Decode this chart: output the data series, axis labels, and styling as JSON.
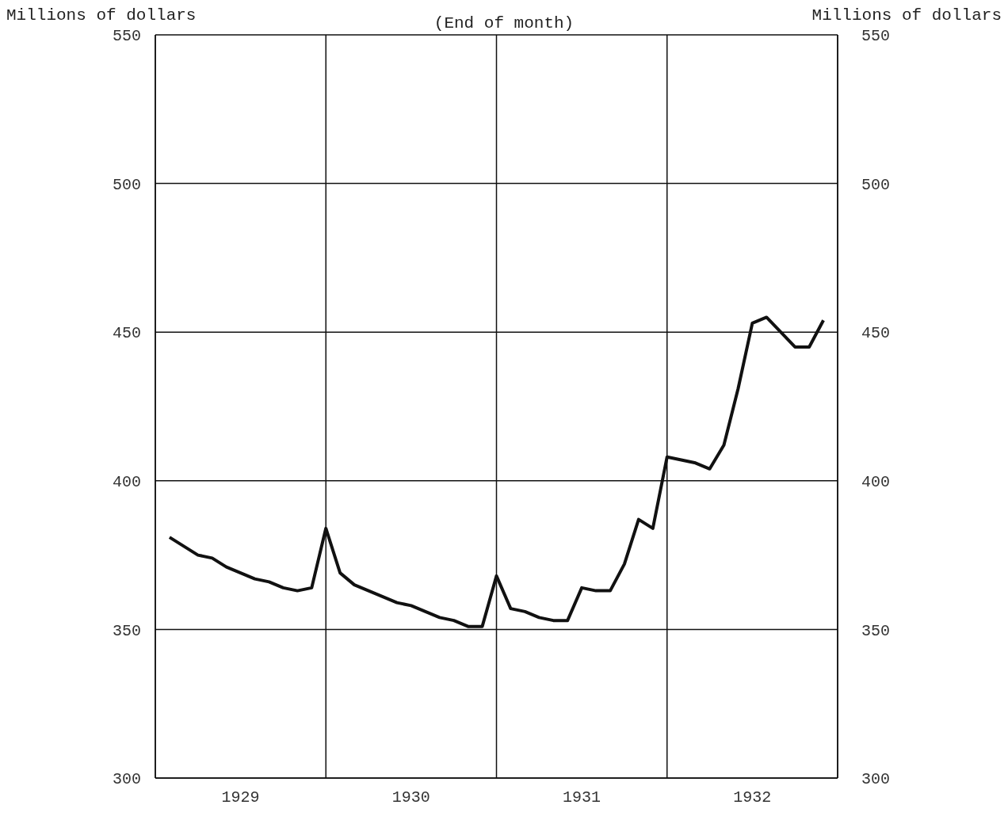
{
  "chart_data": {
    "type": "line",
    "subtitle": "(End of month)",
    "ylabel": "Millions of dollars",
    "y2label": "Millions of dollars",
    "x": [
      1929.0833,
      1929.1667,
      1929.25,
      1929.3333,
      1929.4167,
      1929.5,
      1929.5833,
      1929.6667,
      1929.75,
      1929.8333,
      1929.9167,
      1930,
      1930.0833,
      1930.1667,
      1930.25,
      1930.3333,
      1930.4167,
      1930.5,
      1930.5833,
      1930.6667,
      1930.75,
      1930.8333,
      1930.9167,
      1931,
      1931.0833,
      1931.1667,
      1931.25,
      1931.3333,
      1931.4167,
      1931.5,
      1931.5833,
      1931.6667,
      1931.75,
      1931.8333,
      1931.9167,
      1932,
      1932.0833,
      1932.1667,
      1932.25,
      1932.3333,
      1932.4167,
      1932.5,
      1932.5833,
      1932.6667,
      1932.75,
      1932.8333,
      1932.9167
    ],
    "series": [
      {
        "color": "#111111",
        "values": [
          381,
          378,
          375,
          374,
          371,
          369,
          367,
          366,
          364,
          363,
          364,
          384,
          369,
          365,
          363,
          361,
          359,
          358,
          356,
          354,
          353,
          351,
          351,
          368,
          357,
          356,
          354,
          353,
          353,
          364,
          363,
          363,
          372,
          387,
          384,
          408,
          407,
          406,
          404,
          412,
          431,
          453,
          455,
          450,
          445,
          445,
          454
        ]
      }
    ],
    "xlim": [
      1929,
      1933
    ],
    "xticks": [
      {
        "value": 1929,
        "label": null
      },
      {
        "value": 1929.5,
        "label": "1929"
      },
      {
        "value": 1930,
        "label": null
      },
      {
        "value": 1930.5,
        "label": "1930"
      },
      {
        "value": 1931,
        "label": null
      },
      {
        "value": 1931.5,
        "label": "1931"
      },
      {
        "value": 1932,
        "label": null
      },
      {
        "value": 1932.5,
        "label": "1932"
      },
      {
        "value": 1933,
        "label": null
      }
    ],
    "ylim": [
      300,
      550
    ],
    "yticks": [
      300,
      350,
      400,
      450,
      500,
      550
    ],
    "y2lim": [
      300,
      550
    ],
    "y2ticks": [
      300,
      350,
      400,
      450,
      500,
      550
    ],
    "grid": true,
    "marker": "none",
    "line_style": "solid"
  }
}
